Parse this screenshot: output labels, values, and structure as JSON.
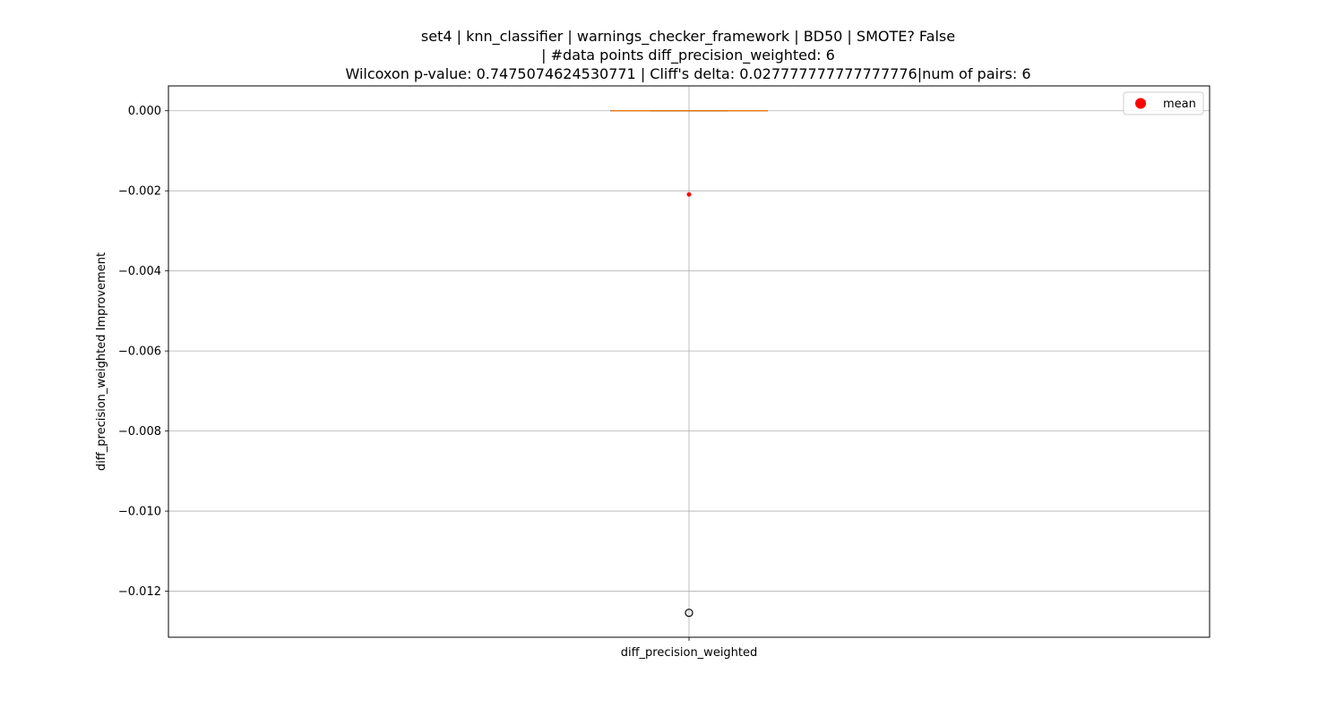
{
  "chart_data": {
    "type": "box",
    "title_lines": [
      "set4 | knn_classifier | warnings_checker_framework | BD50 | SMOTE? False",
      "| #data points diff_precision_weighted: 6",
      "Wilcoxon p-value: 0.7475074624530771 | Cliff's delta: 0.027777777777777776|num of pairs: 6"
    ],
    "categories": [
      "diff_precision_weighted"
    ],
    "ylabel": "diff_precision_weighted Improvement",
    "xlabel": "",
    "ylim": [
      -0.01315,
      0.00062
    ],
    "yticks": [
      0.0,
      -0.002,
      -0.004,
      -0.006,
      -0.008,
      -0.01,
      -0.012
    ],
    "ytick_labels": [
      "0.000",
      "−0.002",
      "−0.004",
      "−0.006",
      "−0.008",
      "−0.010",
      "−0.012"
    ],
    "grid": true,
    "box": {
      "q1": 0.0,
      "median": 0.0,
      "q3": 0.0,
      "whisker_low": 0.0,
      "whisker_high": 0.0,
      "mean": -0.00209,
      "outliers": [
        -0.01254
      ]
    },
    "legend": {
      "position": "top-right",
      "entries": [
        {
          "label": "mean",
          "color": "#ff0000",
          "marker": "circle"
        }
      ]
    },
    "colors": {
      "box": "#000000",
      "median": "#ff7f0e",
      "mean": "#ff0000",
      "grid": "#b0b0b0",
      "outlier": "#000000"
    }
  }
}
